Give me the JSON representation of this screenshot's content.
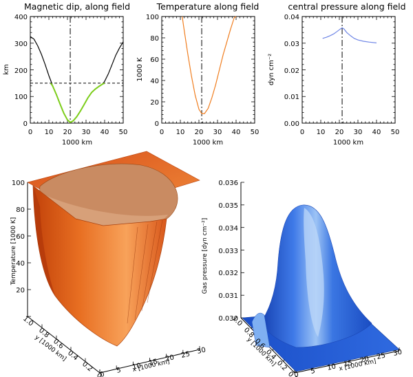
{
  "chart_data": [
    {
      "type": "line",
      "title": "Magnetic dip, along field",
      "xlabel": "1000 km",
      "ylabel": "km",
      "xlim": [
        0,
        50
      ],
      "ylim": [
        0,
        400
      ],
      "xticks": [
        "0",
        "10",
        "20",
        "30",
        "40",
        "50"
      ],
      "yticks": [
        "0",
        "100",
        "200",
        "300",
        "400"
      ],
      "marker_x": 21.5,
      "hline_y": 150,
      "series": [
        {
          "name": "dip",
          "color": "#000000",
          "x": [
            0,
            2,
            4,
            6,
            8,
            10,
            11,
            12,
            14,
            16,
            18,
            20,
            21.5,
            23,
            25,
            27,
            29,
            31,
            33,
            35,
            37,
            39,
            40,
            42,
            44,
            46,
            48,
            50
          ],
          "y": [
            325,
            315,
            290,
            258,
            220,
            178,
            160,
            140,
            108,
            72,
            38,
            12,
            3,
            8,
            24,
            46,
            70,
            95,
            115,
            128,
            138,
            147,
            157,
            185,
            220,
            255,
            282,
            305
          ]
        },
        {
          "name": "dip (below threshold)",
          "color": "#7ccd1a",
          "x": [
            11,
            12,
            14,
            16,
            18,
            20,
            21.5,
            23,
            25,
            27,
            29,
            31,
            33,
            35,
            37,
            39,
            40
          ],
          "y": [
            150,
            140,
            108,
            72,
            38,
            12,
            3,
            8,
            24,
            46,
            70,
            95,
            115,
            128,
            138,
            147,
            150
          ]
        }
      ]
    },
    {
      "type": "line",
      "title": "Temperature along field",
      "xlabel": "1000 km",
      "ylabel": "1000 K",
      "xlim": [
        0,
        50
      ],
      "ylim": [
        0,
        100
      ],
      "xticks": [
        "0",
        "10",
        "20",
        "30",
        "40",
        "50"
      ],
      "yticks": [
        "0",
        "20",
        "40",
        "60",
        "80",
        "100"
      ],
      "marker_x": 21.5,
      "series": [
        {
          "name": "temperature",
          "color": "#f07d1e",
          "x": [
            11,
            12,
            14,
            16,
            18,
            20,
            21.5,
            23,
            25,
            27,
            29,
            31,
            33,
            35,
            37,
            39,
            40
          ],
          "y": [
            100,
            88,
            65,
            44,
            26,
            13,
            9,
            9,
            14,
            24,
            36,
            50,
            64,
            76,
            88,
            99,
            100
          ]
        }
      ]
    },
    {
      "type": "line",
      "title": "central pressure along field",
      "xlabel": "1000 km",
      "ylabel": "dyn cm⁻²",
      "xlim": [
        0,
        50
      ],
      "ylim": [
        0,
        0.04
      ],
      "xticks": [
        "0",
        "10",
        "20",
        "30",
        "40",
        "50"
      ],
      "yticks": [
        "0.00",
        "0.01",
        "0.02",
        "0.03",
        "0.04"
      ],
      "marker_x": 21.5,
      "series": [
        {
          "name": "central pressure",
          "color": "#6f86e6",
          "x": [
            11,
            13,
            15,
            17,
            19,
            20.5,
            21.5,
            22.5,
            24,
            26,
            28,
            30,
            33,
            36,
            40
          ],
          "y": [
            0.0318,
            0.0322,
            0.0328,
            0.0335,
            0.0345,
            0.0353,
            0.0358,
            0.0353,
            0.034,
            0.0328,
            0.0318,
            0.0312,
            0.0307,
            0.0304,
            0.0301
          ]
        }
      ]
    },
    {
      "type": "surface",
      "zlabel": "Temperature [1000 K]",
      "xlabel": "x [1000 km]",
      "ylabel": "y [1000 km]",
      "zticks": [
        "20",
        "40",
        "60",
        "80",
        "100"
      ],
      "xticks": [
        "0",
        "5",
        "10",
        "15",
        "20",
        "25",
        "30"
      ],
      "yticks": [
        "0.0",
        "0.2",
        "0.4",
        "0.6",
        "0.8",
        "1.0"
      ],
      "color": "#e8631a"
    },
    {
      "type": "surface",
      "zlabel": "Gas pressure [dyn cm⁻²]",
      "xlabel": "x [1000 km]",
      "ylabel": "y [1000 km]",
      "zticks": [
        "0.030",
        "0.031",
        "0.032",
        "0.033",
        "0.034",
        "0.035",
        "0.036"
      ],
      "xticks": [
        "0",
        "5",
        "10",
        "15",
        "20",
        "25",
        "30"
      ],
      "yticks": [
        "0.0",
        "0.2",
        "0.4",
        "0.6",
        "0.8",
        "1.0"
      ],
      "color": "#2a6be0"
    }
  ]
}
